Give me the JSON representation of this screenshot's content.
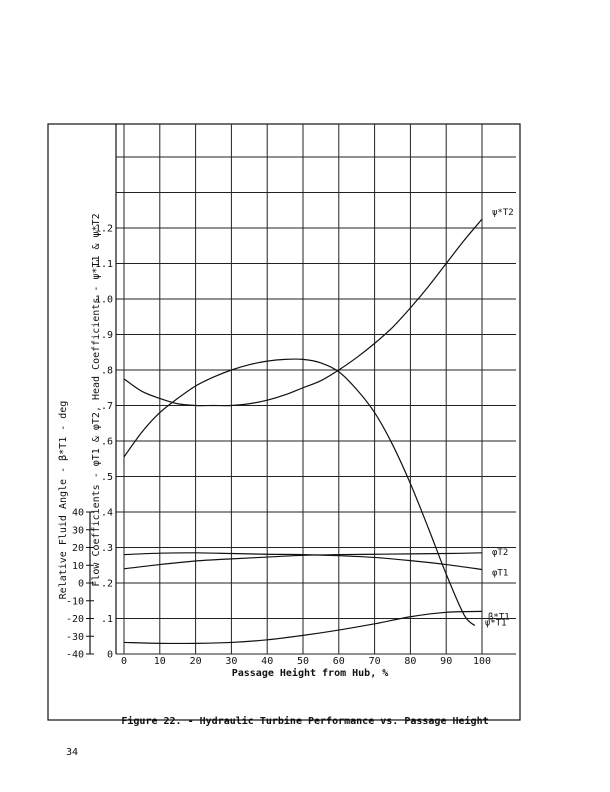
{
  "chart_data": {
    "type": "line",
    "xlabel": "Passage Height from Hub, %",
    "ylabel_outer": "Relative Fluid Angle - β*T1 - deg",
    "ylabel_inner": "Flow Coefficients - φT1 & φT2, Head Coefficients - ψ*T1 & ψ*T2",
    "x_ticks": [
      "0",
      "10",
      "20",
      "30",
      "40",
      "50",
      "60",
      "70",
      "80",
      "90",
      "100"
    ],
    "xlim": [
      0,
      100
    ],
    "y_inner_ticks": [
      "0",
      ".1",
      ".2",
      ".3",
      ".4",
      ".5",
      ".6",
      ".7",
      ".8",
      ".9",
      "1.0",
      "1.1",
      "1.2"
    ],
    "ylim_inner": [
      0,
      1.2
    ],
    "y_outer_ticks": [
      "-40",
      "-30",
      "-20",
      "-10",
      "0",
      "10",
      "20",
      "30",
      "40"
    ],
    "ylim_outer": [
      -40,
      40
    ],
    "grid": true,
    "series": [
      {
        "name": "ψ*T1",
        "axis": "inner",
        "x": [
          0,
          5,
          10,
          15,
          20,
          25,
          30,
          35,
          40,
          45,
          50,
          55,
          60,
          65,
          70,
          75,
          80,
          85,
          90,
          95,
          98
        ],
        "y": [
          0.555,
          0.625,
          0.68,
          0.72,
          0.755,
          0.78,
          0.8,
          0.815,
          0.825,
          0.83,
          0.83,
          0.82,
          0.795,
          0.745,
          0.68,
          0.59,
          0.48,
          0.355,
          0.225,
          0.11,
          0.08
        ]
      },
      {
        "name": "ψ*T2",
        "axis": "inner",
        "x": [
          0,
          5,
          10,
          15,
          20,
          25,
          30,
          35,
          40,
          45,
          50,
          55,
          60,
          65,
          70,
          75,
          80,
          85,
          90,
          95,
          100
        ],
        "y": [
          0.775,
          0.74,
          0.72,
          0.705,
          0.7,
          0.7,
          0.7,
          0.705,
          0.715,
          0.73,
          0.75,
          0.77,
          0.8,
          0.835,
          0.875,
          0.92,
          0.975,
          1.035,
          1.1,
          1.165,
          1.225
        ]
      },
      {
        "name": "φT2",
        "axis": "inner",
        "x": [
          0,
          10,
          20,
          30,
          40,
          50,
          60,
          70,
          80,
          90,
          100
        ],
        "y": [
          0.24,
          0.252,
          0.262,
          0.268,
          0.273,
          0.278,
          0.28,
          0.281,
          0.282,
          0.283,
          0.285
        ]
      },
      {
        "name": "φT1",
        "axis": "inner",
        "x": [
          0,
          10,
          20,
          30,
          40,
          50,
          60,
          70,
          80,
          90,
          100
        ],
        "y": [
          0.28,
          0.284,
          0.285,
          0.283,
          0.281,
          0.28,
          0.277,
          0.272,
          0.263,
          0.252,
          0.238
        ]
      },
      {
        "name": "β*T1",
        "axis": "outer",
        "x": [
          0,
          10,
          20,
          30,
          40,
          50,
          60,
          70,
          80,
          90,
          100
        ],
        "y": [
          -33.5,
          -34,
          -34,
          -33.5,
          -32,
          -29.5,
          -26.5,
          -23,
          -19,
          -16.5,
          -16
        ]
      }
    ],
    "annotations": [
      {
        "text": "ψ*T1",
        "near_series": "ψ*T1"
      },
      {
        "text": "ψ*T2",
        "near_series": "ψ*T2"
      },
      {
        "text": "φT2",
        "near_series": "φT2"
      },
      {
        "text": "φT1",
        "near_series": "φT1"
      },
      {
        "text": "β*T1",
        "near_series": "β*T1"
      }
    ]
  },
  "caption": "Figure 22. - Hydraulic Turbine Performance vs. Passage Height",
  "page_number": "34"
}
